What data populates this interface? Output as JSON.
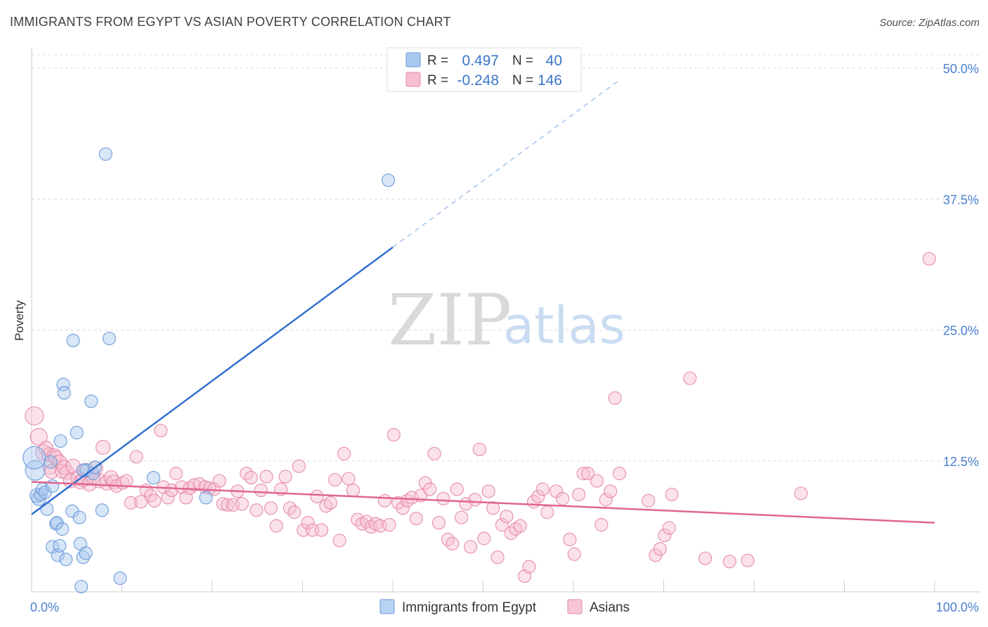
{
  "header": {
    "title": "IMMIGRANTS FROM EGYPT VS ASIAN POVERTY CORRELATION CHART",
    "source": "Source: ZipAtlas.com"
  },
  "watermark": {
    "zip": "ZIP",
    "atlas": "atlas"
  },
  "legend": {
    "rows": [
      {
        "r_label": "R =",
        "r_value": "0.497",
        "n_label": "N =",
        "n_value": "40",
        "color": "#a9c8f0",
        "stroke": "#6a9ad8"
      },
      {
        "r_label": "R =",
        "r_value": "-0.248",
        "n_label": "N =",
        "n_value": "146",
        "color": "#f6bfd0",
        "stroke": "#e58aa8"
      }
    ]
  },
  "bottom_legend": [
    {
      "label": "Immigrants from Egypt",
      "color": "#b9d3f3",
      "stroke": "#6a9ad8"
    },
    {
      "label": "Asians",
      "color": "#f7c6d5",
      "stroke": "#e58aa8"
    }
  ],
  "chart_data": {
    "type": "scatter",
    "title": "IMMIGRANTS FROM EGYPT VS ASIAN POVERTY CORRELATION CHART",
    "xlabel": "",
    "ylabel": "Poverty",
    "xlim": [
      0,
      100
    ],
    "ylim": [
      0,
      50
    ],
    "x_tick_labels": [
      "0.0%",
      "100.0%"
    ],
    "y_ticks": [
      {
        "value": 12.5,
        "label": "12.5%"
      },
      {
        "value": 25.0,
        "label": "25.0%"
      },
      {
        "value": 37.5,
        "label": "37.5%"
      },
      {
        "value": 50.0,
        "label": "50.0%"
      }
    ],
    "series": [
      {
        "name": "Immigrants from Egypt",
        "color": "#a9c8f0",
        "stroke": "#6a9ad8",
        "line_color": "#2f6fd0",
        "trend": {
          "x0": 0,
          "y0": 7.4,
          "x1": 40,
          "y1": 32.9,
          "dash_to_x": 65,
          "dash_to_y": 48.8
        },
        "points": [
          [
            0.4,
            11.6,
            14
          ],
          [
            0.3,
            12.8,
            16
          ],
          [
            0.8,
            8.9,
            10
          ],
          [
            0.6,
            9.2,
            10
          ],
          [
            1.0,
            9.3,
            9
          ],
          [
            1.2,
            9.8,
            9
          ],
          [
            1.5,
            9.5,
            9
          ],
          [
            1.7,
            7.9,
            9
          ],
          [
            2.1,
            12.4,
            9
          ],
          [
            2.3,
            10.1,
            9
          ],
          [
            2.3,
            4.3,
            9
          ],
          [
            2.7,
            6.5,
            9
          ],
          [
            2.8,
            6.6,
            9
          ],
          [
            2.9,
            3.5,
            9
          ],
          [
            3.1,
            4.4,
            9
          ],
          [
            3.2,
            14.4,
            9
          ],
          [
            3.4,
            6.0,
            9
          ],
          [
            3.5,
            19.8,
            9
          ],
          [
            3.6,
            19.0,
            9
          ],
          [
            3.8,
            3.1,
            9
          ],
          [
            4.5,
            7.7,
            9
          ],
          [
            4.6,
            24.0,
            9
          ],
          [
            5.0,
            15.2,
            9
          ],
          [
            5.3,
            7.1,
            9
          ],
          [
            5.4,
            4.6,
            9
          ],
          [
            5.5,
            0.5,
            9
          ],
          [
            5.7,
            3.3,
            9
          ],
          [
            6.0,
            3.7,
            9
          ],
          [
            6.1,
            11.6,
            9
          ],
          [
            6.6,
            18.2,
            9
          ],
          [
            6.8,
            11.3,
            9
          ],
          [
            7.0,
            11.9,
            9
          ],
          [
            7.8,
            7.8,
            9
          ],
          [
            8.2,
            41.8,
            9
          ],
          [
            8.6,
            24.2,
            9
          ],
          [
            9.8,
            1.3,
            9
          ],
          [
            13.5,
            10.9,
            9
          ],
          [
            19.3,
            9.0,
            9
          ],
          [
            39.5,
            39.3,
            9
          ],
          [
            5.7,
            11.6,
            9
          ]
        ]
      },
      {
        "name": "Asians",
        "color": "#f6bfd0",
        "stroke": "#e58aa8",
        "line_color": "#e0658f",
        "trend": {
          "x0": 0,
          "y0": 10.5,
          "x1": 100,
          "y1": 6.6
        },
        "points": [
          [
            0.3,
            16.8,
            13
          ],
          [
            0.8,
            14.8,
            12
          ],
          [
            1.3,
            13.3,
            11
          ],
          [
            1.6,
            13.7,
            10
          ],
          [
            1.9,
            13.1,
            10
          ],
          [
            2.0,
            11.9,
            10
          ],
          [
            2.2,
            11.5,
            10
          ],
          [
            2.5,
            13.0,
            10
          ],
          [
            2.7,
            12.8,
            10
          ],
          [
            3.1,
            12.4,
            10
          ],
          [
            3.4,
            11.5,
            10
          ],
          [
            3.6,
            11.9,
            10
          ],
          [
            3.9,
            11.4,
            10
          ],
          [
            4.3,
            10.6,
            10
          ],
          [
            4.6,
            12.0,
            10
          ],
          [
            5.1,
            10.9,
            10
          ],
          [
            5.4,
            10.5,
            10
          ],
          [
            5.7,
            10.7,
            10
          ],
          [
            6.0,
            11.6,
            10
          ],
          [
            6.4,
            10.3,
            10
          ],
          [
            6.8,
            11.0,
            10
          ],
          [
            7.1,
            11.8,
            10
          ],
          [
            7.5,
            10.6,
            10
          ],
          [
            7.9,
            13.8,
            10
          ],
          [
            8.3,
            10.4,
            10
          ],
          [
            8.8,
            10.9,
            10
          ],
          [
            9.1,
            10.5,
            10
          ],
          [
            9.4,
            10.1,
            9
          ],
          [
            10.1,
            10.4,
            9
          ],
          [
            10.5,
            10.6,
            9
          ],
          [
            11.0,
            8.5,
            9
          ],
          [
            11.6,
            12.9,
            9
          ],
          [
            12.1,
            8.6,
            9
          ],
          [
            12.7,
            9.7,
            9
          ],
          [
            13.2,
            9.2,
            9
          ],
          [
            13.6,
            8.7,
            9
          ],
          [
            14.3,
            15.4,
            9
          ],
          [
            14.6,
            10.0,
            9
          ],
          [
            15.1,
            9.0,
            9
          ],
          [
            15.5,
            9.7,
            9
          ],
          [
            16.0,
            11.3,
            9
          ],
          [
            16.6,
            10.0,
            9
          ],
          [
            17.1,
            9.0,
            9
          ],
          [
            17.5,
            9.9,
            9
          ],
          [
            18.0,
            10.2,
            9
          ],
          [
            18.6,
            10.3,
            9
          ],
          [
            19.2,
            10.0,
            9
          ],
          [
            19.7,
            9.9,
            9
          ],
          [
            20.2,
            9.8,
            9
          ],
          [
            20.8,
            10.6,
            9
          ],
          [
            21.2,
            8.4,
            9
          ],
          [
            21.7,
            8.3,
            9
          ],
          [
            22.3,
            8.3,
            9
          ],
          [
            22.8,
            9.6,
            9
          ],
          [
            23.3,
            8.4,
            9
          ],
          [
            23.8,
            11.3,
            9
          ],
          [
            24.3,
            10.9,
            9
          ],
          [
            24.9,
            7.8,
            9
          ],
          [
            25.4,
            9.7,
            9
          ],
          [
            26.0,
            11.0,
            9
          ],
          [
            26.5,
            8.0,
            9
          ],
          [
            27.1,
            6.3,
            9
          ],
          [
            27.6,
            9.8,
            9
          ],
          [
            28.1,
            11.0,
            9
          ],
          [
            28.6,
            8.0,
            9
          ],
          [
            29.1,
            7.6,
            9
          ],
          [
            29.6,
            12.0,
            9
          ],
          [
            30.1,
            5.9,
            9
          ],
          [
            30.6,
            6.6,
            9
          ],
          [
            31.1,
            5.9,
            9
          ],
          [
            31.6,
            9.1,
            9
          ],
          [
            32.1,
            5.9,
            9
          ],
          [
            32.6,
            8.2,
            9
          ],
          [
            33.1,
            8.5,
            9
          ],
          [
            33.6,
            10.7,
            9
          ],
          [
            34.1,
            4.9,
            9
          ],
          [
            34.6,
            13.2,
            9
          ],
          [
            35.1,
            10.8,
            9
          ],
          [
            35.6,
            9.7,
            9
          ],
          [
            36.1,
            6.9,
            9
          ],
          [
            36.6,
            6.5,
            9
          ],
          [
            37.1,
            6.7,
            9
          ],
          [
            37.6,
            6.2,
            9
          ],
          [
            38.1,
            6.5,
            9
          ],
          [
            38.6,
            6.3,
            9
          ],
          [
            39.1,
            8.7,
            9
          ],
          [
            39.6,
            6.4,
            9
          ],
          [
            40.1,
            15.0,
            9
          ],
          [
            40.6,
            8.5,
            9
          ],
          [
            41.1,
            8.0,
            9
          ],
          [
            41.6,
            8.7,
            9
          ],
          [
            42.1,
            9.0,
            9
          ],
          [
            42.6,
            7.0,
            9
          ],
          [
            43.1,
            9.2,
            9
          ],
          [
            43.6,
            10.4,
            9
          ],
          [
            44.1,
            9.8,
            9
          ],
          [
            44.6,
            13.2,
            9
          ],
          [
            45.1,
            6.6,
            9
          ],
          [
            45.6,
            8.9,
            9
          ],
          [
            46.1,
            5.0,
            9
          ],
          [
            46.6,
            4.6,
            9
          ],
          [
            47.1,
            9.8,
            9
          ],
          [
            47.6,
            7.1,
            9
          ],
          [
            48.1,
            8.4,
            9
          ],
          [
            48.6,
            4.3,
            9
          ],
          [
            49.1,
            8.8,
            9
          ],
          [
            49.6,
            13.6,
            9
          ],
          [
            50.1,
            5.1,
            9
          ],
          [
            50.6,
            9.6,
            9
          ],
          [
            51.1,
            8.0,
            9
          ],
          [
            51.6,
            3.3,
            9
          ],
          [
            52.1,
            6.4,
            9
          ],
          [
            52.6,
            7.2,
            9
          ],
          [
            53.1,
            5.6,
            9
          ],
          [
            53.6,
            6.0,
            9
          ],
          [
            54.1,
            6.3,
            9
          ],
          [
            54.6,
            1.5,
            9
          ],
          [
            55.1,
            2.4,
            9
          ],
          [
            55.6,
            8.6,
            9
          ],
          [
            56.1,
            9.1,
            9
          ],
          [
            56.6,
            9.8,
            9
          ],
          [
            57.1,
            7.6,
            9
          ],
          [
            58.1,
            9.6,
            9
          ],
          [
            58.8,
            8.9,
            9
          ],
          [
            59.6,
            5.0,
            9
          ],
          [
            60.1,
            3.6,
            9
          ],
          [
            60.6,
            9.3,
            9
          ],
          [
            61.1,
            11.3,
            9
          ],
          [
            61.6,
            11.3,
            9
          ],
          [
            62.6,
            10.6,
            9
          ],
          [
            63.1,
            6.4,
            9
          ],
          [
            63.6,
            8.8,
            9
          ],
          [
            64.1,
            9.6,
            9
          ],
          [
            64.6,
            18.5,
            9
          ],
          [
            65.1,
            11.3,
            9
          ],
          [
            68.3,
            8.7,
            9
          ],
          [
            69.1,
            3.5,
            9
          ],
          [
            69.6,
            4.1,
            9
          ],
          [
            70.1,
            5.4,
            9
          ],
          [
            70.6,
            6.1,
            9
          ],
          [
            70.9,
            9.3,
            9
          ],
          [
            72.9,
            20.4,
            9
          ],
          [
            74.6,
            3.2,
            9
          ],
          [
            77.3,
            2.9,
            9
          ],
          [
            79.3,
            3.0,
            9
          ],
          [
            85.2,
            9.4,
            9
          ],
          [
            99.4,
            31.8,
            9
          ]
        ]
      }
    ]
  }
}
